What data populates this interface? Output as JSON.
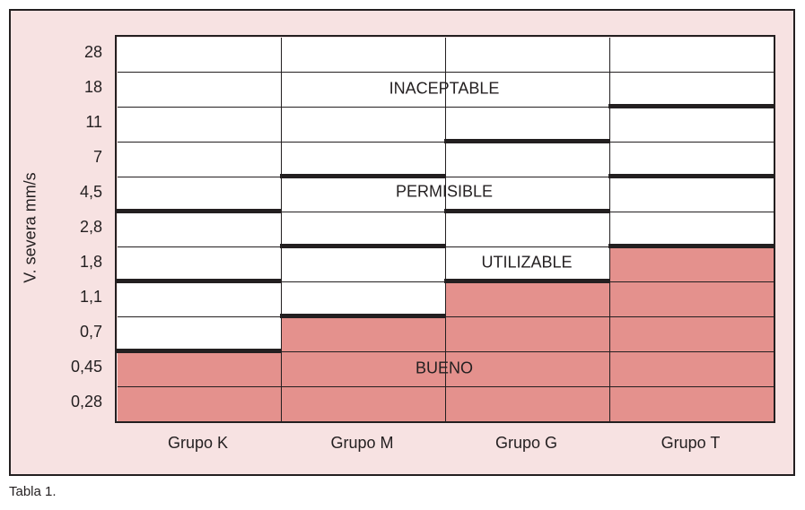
{
  "chart_data": {
    "type": "table",
    "ylabel": "V. severa mm/s",
    "y_ticks": [
      "28",
      "18",
      "11",
      "7",
      "4,5",
      "2,8",
      "1,8",
      "1,1",
      "0,7",
      "0,45",
      "0,28"
    ],
    "categories": [
      "Grupo K",
      "Grupo M",
      "Grupo G",
      "Grupo T"
    ],
    "zones": [
      "BUENO",
      "UTILIZABLE",
      "PERMISIBLE",
      "INACEPTABLE"
    ],
    "zone_upper_limits": {
      "Grupo K": {
        "BUENO": "0,45",
        "UTILIZABLE": "1,1",
        "PERMISIBLE": "2,8"
      },
      "Grupo M": {
        "BUENO": "0,7",
        "UTILIZABLE": "1,8",
        "PERMISIBLE": "4,5"
      },
      "Grupo G": {
        "BUENO": "1,1",
        "UTILIZABLE": "2,8",
        "PERMISIBLE": "7"
      },
      "Grupo T": {
        "BUENO": "1,8",
        "UTILIZABLE": "4,5",
        "PERMISIBLE": "11"
      }
    },
    "colors": {
      "background": "#f7e2e2",
      "bueno_fill": "#e4918d",
      "lines": "#231f20"
    }
  },
  "caption": "Tabla 1."
}
